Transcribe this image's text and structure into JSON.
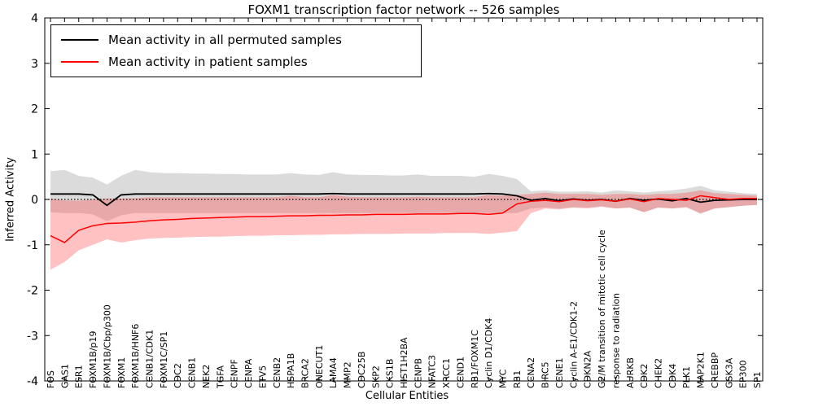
{
  "chart_data": {
    "type": "line",
    "title": "FOXM1 transcription factor network -- 526 samples",
    "xlabel": "Cellular Entities",
    "ylabel": "Inferred Activity",
    "ylim": [
      -4,
      4
    ],
    "yticks": [
      -4,
      -3,
      -2,
      -1,
      0,
      1,
      2,
      3,
      4
    ],
    "grid": false,
    "legend_position": "upper left",
    "zero_line": {
      "y": 0,
      "style": "dotted",
      "color": "#000000"
    },
    "categories": [
      "FOS",
      "GAS1",
      "ESR1",
      "FOXM1B/p19",
      "FOXM1B/Cbp/p300",
      "FOXM1",
      "FOXM1B/HNF6",
      "CCNB1/CDK1",
      "FOXM1C/SP1",
      "CDC2",
      "CCNB1",
      "NEK2",
      "TGFA",
      "CENPF",
      "CENPA",
      "ETV5",
      "CCNB2",
      "HSPA1B",
      "BRCA2",
      "ONECUT1",
      "LAMA4",
      "MMP2",
      "CDC25B",
      "SKP2",
      "CKS1B",
      "HIST1H2BA",
      "CENPB",
      "NFATC3",
      "XRCC1",
      "CCND1",
      "RB1/FOXM1C",
      "Cyclin D1/CDK4",
      "MYC",
      "RB1",
      "CCNA2",
      "BIRC5",
      "CCNE1",
      "Cyclin A-E1/CDK1-2",
      "CDKN2A",
      "G2/M transition of mitotic cell cycle",
      "response to radiation",
      "AURKB",
      "CDK2",
      "CHEK2",
      "CDK4",
      "PLK1",
      "MAP2K1",
      "CREBBP",
      "GSK3A",
      "EP300",
      "SP1"
    ],
    "series": [
      {
        "name": "Mean activity in all permuted samples",
        "color": "#000000",
        "band_color": "#888888",
        "band_opacity": 0.3,
        "values": [
          0.12,
          0.12,
          0.12,
          0.1,
          -0.13,
          0.1,
          0.12,
          0.12,
          0.12,
          0.12,
          0.12,
          0.12,
          0.12,
          0.12,
          0.12,
          0.12,
          0.12,
          0.12,
          0.12,
          0.12,
          0.13,
          0.12,
          0.12,
          0.12,
          0.12,
          0.12,
          0.12,
          0.12,
          0.12,
          0.12,
          0.12,
          0.13,
          0.12,
          0.08,
          -0.02,
          0.02,
          -0.03,
          0.01,
          -0.02,
          0.0,
          -0.04,
          0.02,
          -0.02,
          0.01,
          -0.03,
          0.02,
          -0.06,
          -0.02,
          -0.01,
          0.0,
          0.0
        ],
        "band_upper": [
          0.62,
          0.65,
          0.52,
          0.48,
          0.33,
          0.52,
          0.65,
          0.6,
          0.58,
          0.58,
          0.57,
          0.57,
          0.56,
          0.56,
          0.55,
          0.55,
          0.55,
          0.58,
          0.55,
          0.54,
          0.6,
          0.55,
          0.54,
          0.54,
          0.53,
          0.53,
          0.55,
          0.52,
          0.52,
          0.52,
          0.5,
          0.56,
          0.52,
          0.45,
          0.18,
          0.2,
          0.17,
          0.17,
          0.18,
          0.15,
          0.2,
          0.18,
          0.15,
          0.18,
          0.2,
          0.24,
          0.3,
          0.2,
          0.17,
          0.14,
          0.12
        ],
        "band_lower": [
          -0.28,
          -0.3,
          -0.3,
          -0.33,
          -0.48,
          -0.35,
          -0.3,
          -0.3,
          -0.3,
          -0.3,
          -0.3,
          -0.3,
          -0.3,
          -0.3,
          -0.3,
          -0.3,
          -0.3,
          -0.3,
          -0.3,
          -0.3,
          -0.3,
          -0.3,
          -0.3,
          -0.3,
          -0.3,
          -0.3,
          -0.3,
          -0.3,
          -0.3,
          -0.3,
          -0.3,
          -0.3,
          -0.3,
          -0.3,
          -0.2,
          -0.18,
          -0.2,
          -0.17,
          -0.18,
          -0.15,
          -0.2,
          -0.18,
          -0.28,
          -0.18,
          -0.2,
          -0.16,
          -0.32,
          -0.2,
          -0.17,
          -0.14,
          -0.12
        ]
      },
      {
        "name": "Mean activity in patient samples",
        "color": "#ff0000",
        "band_color": "#ff3333",
        "band_opacity": 0.3,
        "values": [
          -0.8,
          -0.95,
          -0.68,
          -0.58,
          -0.53,
          -0.52,
          -0.5,
          -0.47,
          -0.45,
          -0.44,
          -0.42,
          -0.41,
          -0.4,
          -0.39,
          -0.38,
          -0.38,
          -0.37,
          -0.36,
          -0.36,
          -0.35,
          -0.35,
          -0.34,
          -0.34,
          -0.33,
          -0.33,
          -0.33,
          -0.32,
          -0.32,
          -0.32,
          -0.31,
          -0.31,
          -0.33,
          -0.3,
          -0.1,
          -0.04,
          -0.02,
          -0.05,
          0.0,
          -0.03,
          -0.01,
          -0.04,
          0.01,
          -0.05,
          0.02,
          0.0,
          -0.02,
          0.08,
          0.04,
          0.0,
          0.02,
          0.02
        ],
        "band_upper": [
          0.02,
          -0.02,
          -0.03,
          0.0,
          0.02,
          0.02,
          0.03,
          0.05,
          0.05,
          0.05,
          0.05,
          0.05,
          0.05,
          0.05,
          0.05,
          0.05,
          0.05,
          0.08,
          0.05,
          0.05,
          0.1,
          0.06,
          0.05,
          0.05,
          0.05,
          0.05,
          0.06,
          0.05,
          0.05,
          0.05,
          0.05,
          0.1,
          0.08,
          0.1,
          0.12,
          0.15,
          0.12,
          0.12,
          0.12,
          0.1,
          0.12,
          0.12,
          0.1,
          0.12,
          0.12,
          0.15,
          0.2,
          0.14,
          0.12,
          0.1,
          0.08
        ],
        "band_lower": [
          -1.55,
          -1.38,
          -1.12,
          -1.0,
          -0.88,
          -0.95,
          -0.9,
          -0.86,
          -0.85,
          -0.84,
          -0.83,
          -0.82,
          -0.82,
          -0.81,
          -0.8,
          -0.8,
          -0.79,
          -0.79,
          -0.78,
          -0.78,
          -0.77,
          -0.77,
          -0.76,
          -0.76,
          -0.76,
          -0.75,
          -0.75,
          -0.75,
          -0.74,
          -0.74,
          -0.74,
          -0.76,
          -0.73,
          -0.7,
          -0.3,
          -0.2,
          -0.22,
          -0.18,
          -0.2,
          -0.16,
          -0.2,
          -0.18,
          -0.28,
          -0.18,
          -0.2,
          -0.18,
          -0.3,
          -0.2,
          -0.17,
          -0.14,
          -0.12
        ]
      }
    ]
  }
}
